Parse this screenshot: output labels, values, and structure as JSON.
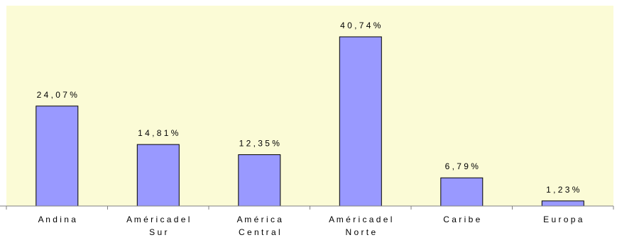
{
  "colors": {
    "plot_background": "#fbfbd6",
    "bar_fill": "#9999ff",
    "bar_stroke": "#000000",
    "axis": "#808080"
  },
  "chart_data": {
    "type": "bar",
    "title": "",
    "xlabel": "",
    "ylabel": "",
    "categories": [
      "Andina",
      "América del Sur",
      "América Central",
      "América del Norte",
      "Caribe",
      "Europa"
    ],
    "category_labels": [
      [
        "A n d i n a"
      ],
      [
        "A m é r i c a  d e l",
        "S u r"
      ],
      [
        "A m é r i c a",
        "C e n t r a l"
      ],
      [
        "A m é r i c a  d e l",
        "N o r t e"
      ],
      [
        "C a r i b e"
      ],
      [
        "E u r o p a"
      ]
    ],
    "values": [
      24.07,
      14.81,
      12.35,
      40.74,
      6.79,
      1.23
    ],
    "value_labels": [
      "2 4 , 0 7 %",
      "1 4 , 8 1 %",
      "1 2 , 3 5 %",
      "4 0 , 7 4 %",
      "6 , 7 9 %",
      "1 , 2 3 %"
    ],
    "unit": "%",
    "ylim": [
      0,
      45
    ],
    "grid": false,
    "legend": "none"
  }
}
